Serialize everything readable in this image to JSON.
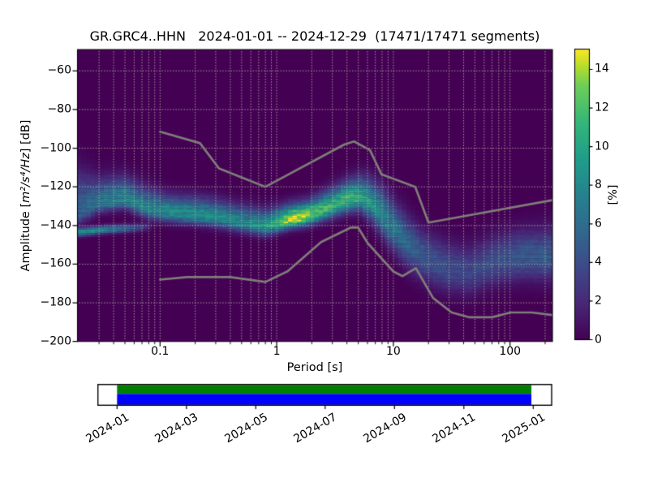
{
  "title": "GR.GRC4..HHN   2024-01-01 -- 2024-12-29  (17471/17471 segments)",
  "station": "GR.GRC4..HHN",
  "date_range": "2024-01-01 -- 2024-12-29",
  "segments_used": 17471,
  "segments_total": 17471,
  "axes": {
    "xlabel": "Period [s]",
    "ylabel_prefix": "Amplitude [",
    "ylabel_math": "m²/s⁴/Hz",
    "ylabel_suffix": "] [dB]",
    "x_tick_labels": [
      "0.1",
      "1",
      "10",
      "100"
    ],
    "y_tick_labels": [
      "−60",
      "−80",
      "−100",
      "−120",
      "−140",
      "−160",
      "−180",
      "−200"
    ]
  },
  "colorbar": {
    "label": "[%]",
    "tick_labels": [
      "0",
      "2",
      "4",
      "6",
      "8",
      "10",
      "12",
      "14"
    ],
    "tick_values": [
      0,
      2,
      4,
      6,
      8,
      10,
      12,
      14
    ],
    "vmin": 0,
    "vmax": 15
  },
  "timeline": {
    "tick_labels": [
      "2024-01",
      "2024-03",
      "2024-05",
      "2024-07",
      "2024-09",
      "2024-11",
      "2025-01"
    ],
    "top_bar_color": "#008000",
    "bottom_bar_color": "#0000ff"
  },
  "chart_data": {
    "type": "heatmap",
    "title": "GR.GRC4..HHN   2024-01-01 -- 2024-12-29  (17471/17471 segments)",
    "xlabel": "Period [s]",
    "ylabel": "Amplitude [m²/s⁴/Hz] [dB]",
    "colormap": "viridis",
    "value_label": "[%]",
    "x_axis": {
      "scale": "log",
      "range": [
        0.02,
        230
      ],
      "ticks": [
        0.1,
        1,
        10,
        100
      ]
    },
    "y_axis": {
      "scale": "linear",
      "range": [
        -200,
        -49
      ],
      "ticks": [
        -60,
        -80,
        -100,
        -120,
        -140,
        -160,
        -180,
        -200
      ]
    },
    "grid": {
      "x_major": true,
      "x_minor": true,
      "y_major": true,
      "style": "dotted"
    },
    "viridis_stops": [
      [
        0.0,
        68,
        1,
        84
      ],
      [
        0.125,
        72,
        40,
        120
      ],
      [
        0.25,
        62,
        74,
        137
      ],
      [
        0.375,
        49,
        104,
        142
      ],
      [
        0.5,
        38,
        130,
        142
      ],
      [
        0.625,
        31,
        158,
        137
      ],
      [
        0.75,
        53,
        183,
        121
      ],
      [
        0.875,
        110,
        206,
        88
      ],
      [
        0.94,
        181,
        222,
        43
      ],
      [
        1.0,
        253,
        231,
        37
      ]
    ],
    "distribution_ridge": [
      [
        0.02,
        -133.0,
        6.0,
        5.5,
        2.2,
        0.7
      ],
      [
        0.03,
        -128.5,
        4.5,
        7.0,
        1.8,
        0.7
      ],
      [
        0.05,
        -126.5,
        4.5,
        8.5,
        1.6,
        0.7
      ],
      [
        0.08,
        -131.5,
        4.5,
        8.0,
        1.5,
        0.75
      ],
      [
        0.12,
        -133.5,
        4.2,
        8.5,
        1.4,
        0.75
      ],
      [
        0.2,
        -134.5,
        4.2,
        9.0,
        1.4,
        0.75
      ],
      [
        0.3,
        -136.0,
        4.2,
        8.5,
        1.4,
        0.75
      ],
      [
        0.5,
        -138.5,
        4.2,
        8.0,
        1.35,
        0.75
      ],
      [
        0.8,
        -140.5,
        4.2,
        9.0,
        1.3,
        0.75
      ],
      [
        1.0,
        -139.0,
        4.0,
        11.0,
        1.3,
        0.75
      ],
      [
        1.35,
        -136.8,
        3.8,
        15.0,
        1.3,
        0.75
      ],
      [
        1.8,
        -135.5,
        3.8,
        14.5,
        1.3,
        0.8
      ],
      [
        2.3,
        -133.0,
        4.2,
        12.0,
        1.3,
        0.8
      ],
      [
        3.2,
        -129.5,
        4.6,
        11.5,
        1.3,
        0.8
      ],
      [
        4.2,
        -126.5,
        4.8,
        12.0,
        1.3,
        0.85
      ],
      [
        5.2,
        -125.5,
        5.2,
        10.5,
        1.3,
        0.9
      ],
      [
        6.5,
        -128.5,
        6.0,
        9.0,
        1.3,
        1.0
      ],
      [
        8.0,
        -134.0,
        7.0,
        8.0,
        1.25,
        1.0
      ],
      [
        10.0,
        -141.0,
        7.5,
        7.0,
        1.2,
        1.0
      ],
      [
        13.0,
        -149.0,
        8.0,
        6.0,
        1.15,
        1.0
      ],
      [
        17.0,
        -155.0,
        8.0,
        5.0,
        1.1,
        1.0
      ],
      [
        22.0,
        -159.0,
        8.0,
        4.5,
        1.1,
        1.0
      ],
      [
        30.0,
        -162.5,
        8.0,
        4.2,
        1.1,
        0.95
      ],
      [
        45.0,
        -164.0,
        8.0,
        3.8,
        1.1,
        0.95
      ],
      [
        65.0,
        -160.0,
        8.0,
        4.2,
        1.1,
        0.95
      ],
      [
        90.0,
        -157.5,
        8.0,
        4.5,
        1.1,
        0.95
      ],
      [
        130.0,
        -156.0,
        8.0,
        5.0,
        1.1,
        0.95
      ],
      [
        230.0,
        -156.0,
        8.5,
        5.0,
        1.1,
        0.95
      ]
    ],
    "mode_line_low_period": [
      [
        0.02,
        -143.5,
        9.0
      ],
      [
        0.035,
        -142.0,
        8.0
      ],
      [
        0.05,
        -141.5,
        6.0
      ],
      [
        0.07,
        -141.0,
        3.5
      ],
      [
        0.09,
        -140.5,
        0.0
      ]
    ],
    "noise_models": {
      "high_model": [
        [
          0.1,
          -91.5
        ],
        [
          0.22,
          -97.4
        ],
        [
          0.32,
          -110.5
        ],
        [
          0.8,
          -120.0
        ],
        [
          3.8,
          -98.1
        ],
        [
          4.6,
          -96.5
        ],
        [
          6.3,
          -101.0
        ],
        [
          7.9,
          -113.5
        ],
        [
          15.4,
          -120.0
        ],
        [
          20.0,
          -138.5
        ],
        [
          230.0,
          -126.9
        ]
      ],
      "low_model": [
        [
          0.1,
          -168.0
        ],
        [
          0.17,
          -166.7
        ],
        [
          0.4,
          -166.7
        ],
        [
          0.8,
          -169.2
        ],
        [
          1.24,
          -163.7
        ],
        [
          2.4,
          -148.6
        ],
        [
          4.3,
          -141.1
        ],
        [
          5.0,
          -141.1
        ],
        [
          6.0,
          -149.0
        ],
        [
          10.0,
          -163.8
        ],
        [
          12.0,
          -166.2
        ],
        [
          15.6,
          -162.1
        ],
        [
          21.9,
          -177.5
        ],
        [
          31.6,
          -185.0
        ],
        [
          45.0,
          -187.5
        ],
        [
          70.0,
          -187.5
        ],
        [
          101.0,
          -185.0
        ],
        [
          154.0,
          -185.0
        ],
        [
          230.0,
          -186.3
        ]
      ]
    }
  }
}
